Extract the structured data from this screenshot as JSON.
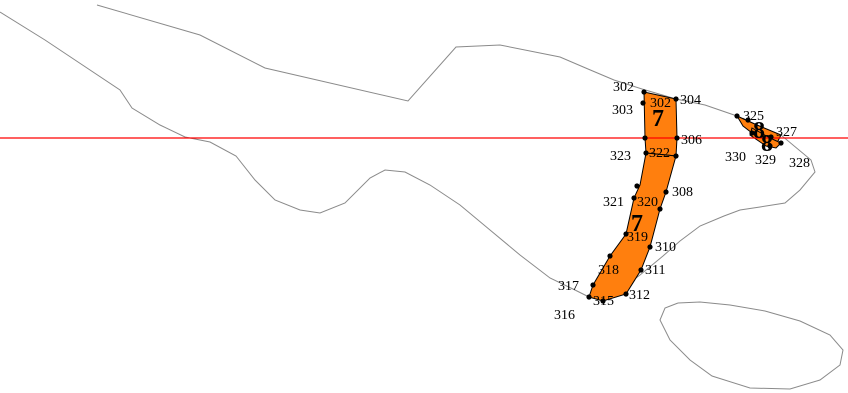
{
  "colors": {
    "region_fill": "#ff7f0e",
    "outline": "#8a8a8a",
    "cut_line": "#ff0000"
  },
  "regions": [
    {
      "id": "region-7a",
      "label": "7"
    },
    {
      "id": "region-7b",
      "label": "7"
    },
    {
      "id": "region-8a",
      "label": "8"
    },
    {
      "id": "region-8b",
      "label": "8"
    }
  ],
  "vertex_labels": [
    "302",
    "302",
    "303",
    "304",
    "306",
    "308",
    "310",
    "311",
    "312",
    "315",
    "316",
    "317",
    "318",
    "319",
    "320",
    "321",
    "322",
    "323",
    "325",
    "327",
    "328",
    "329",
    "330"
  ]
}
